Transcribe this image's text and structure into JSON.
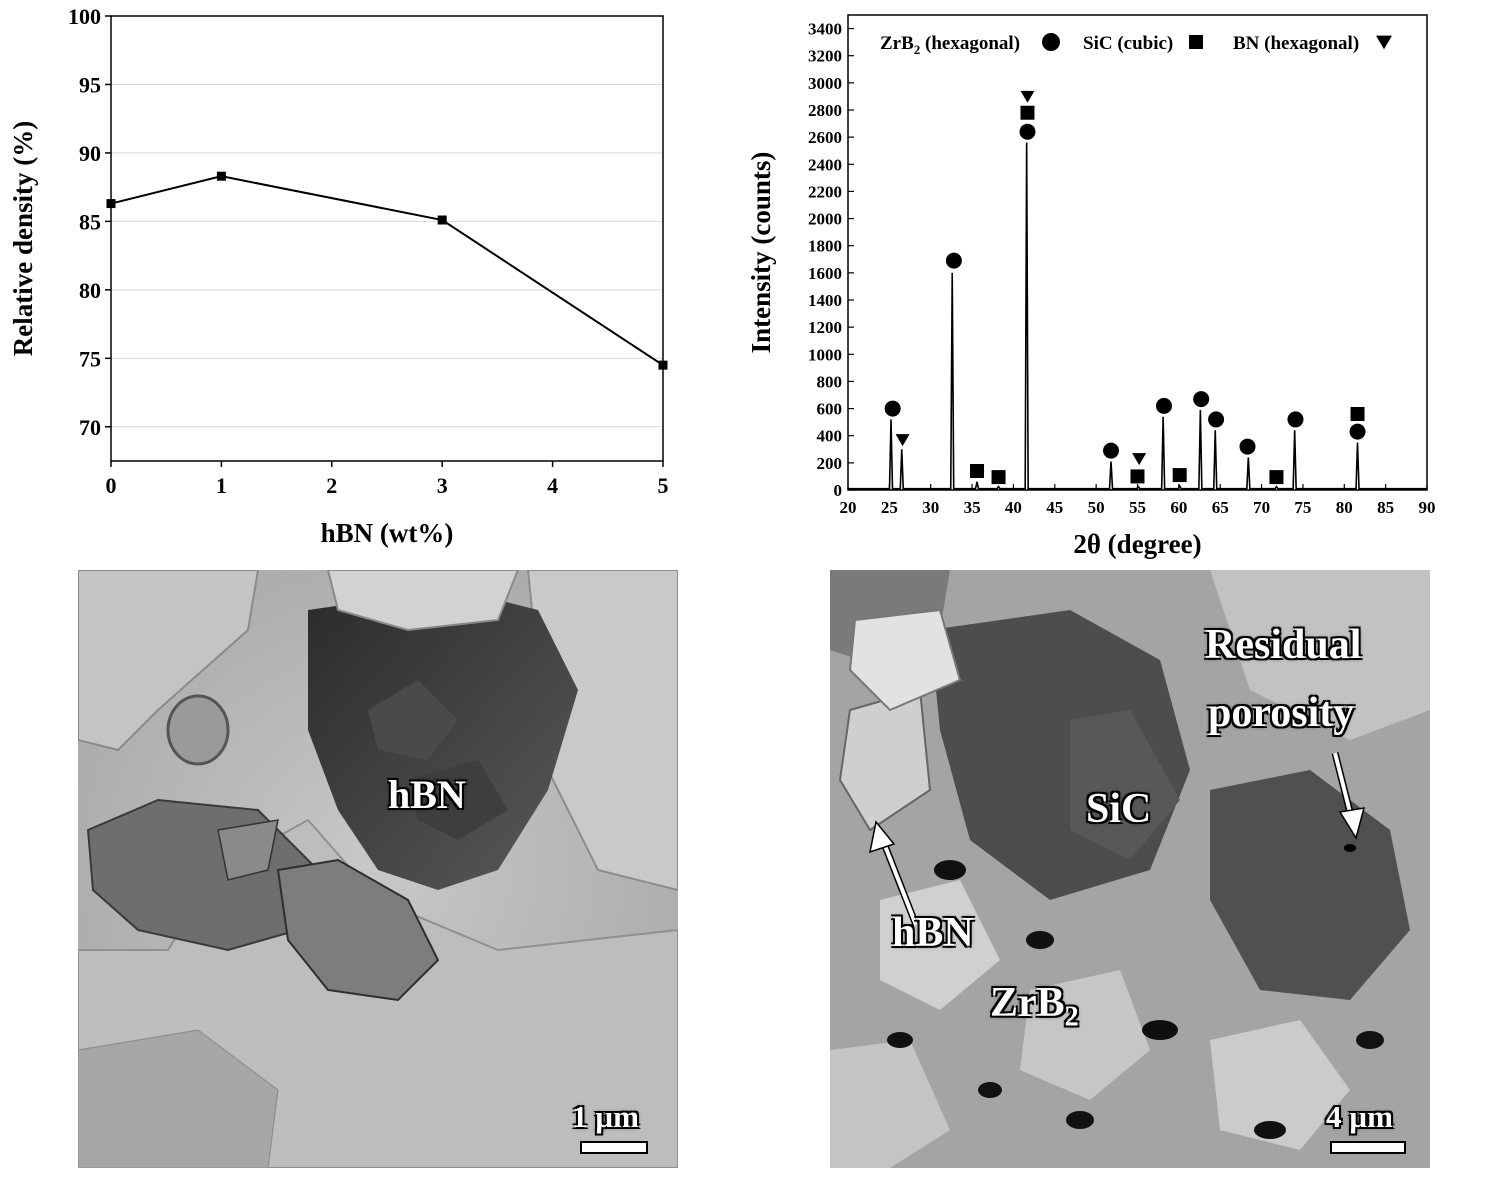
{
  "chart_data": [
    {
      "type": "line",
      "xlabel": "hBN (wt%)",
      "ylabel": "Relative density (%)",
      "xlim": [
        0,
        5
      ],
      "ylim": [
        67.5,
        100
      ],
      "xticks": [
        "0",
        "1",
        "2",
        "3",
        "4",
        "5"
      ],
      "yticks": [
        "70",
        "75",
        "80",
        "85",
        "90",
        "95",
        "100"
      ],
      "grid": "horizontal",
      "series": [
        {
          "x": [
            0,
            1,
            3,
            5
          ],
          "values": [
            86.3,
            88.3,
            85.1,
            74.5
          ],
          "marker": "square",
          "color": "#000000"
        }
      ]
    },
    {
      "type": "line",
      "xlabel": "2θ (degree)",
      "ylabel": "Intensity (counts)",
      "xlim": [
        20,
        90
      ],
      "ylim": [
        0,
        3500
      ],
      "xticks": [
        "20",
        "25",
        "30",
        "35",
        "40",
        "45",
        "50",
        "55",
        "60",
        "65",
        "70",
        "75",
        "80",
        "85",
        "90"
      ],
      "yticks": [
        "0",
        "200",
        "400",
        "600",
        "800",
        "1000",
        "1200",
        "1400",
        "1600",
        "1800",
        "2000",
        "2200",
        "2400",
        "2600",
        "2800",
        "3000",
        "3200",
        "3400"
      ],
      "legend": {
        "placement": "top",
        "entries": [
          {
            "base": "ZrB",
            "sub": "2",
            "rest": " (hexagonal)",
            "marker": "circle"
          },
          {
            "base": "SiC",
            "sub": "",
            "rest": " (cubic)",
            "marker": "square"
          },
          {
            "base": "BN",
            "sub": "",
            "rest": " (hexagonal)",
            "marker": "triangle"
          }
        ]
      },
      "peaks": [
        {
          "x": 25.2,
          "y": 520
        },
        {
          "x": 26.5,
          "y": 300
        },
        {
          "x": 32.6,
          "y": 1600
        },
        {
          "x": 35.6,
          "y": 60
        },
        {
          "x": 38.2,
          "y": 25
        },
        {
          "x": 41.6,
          "y": 2560
        },
        {
          "x": 51.8,
          "y": 210
        },
        {
          "x": 55.1,
          "y": 25
        },
        {
          "x": 58.1,
          "y": 540
        },
        {
          "x": 60.1,
          "y": 30
        },
        {
          "x": 62.6,
          "y": 590
        },
        {
          "x": 64.4,
          "y": 440
        },
        {
          "x": 68.4,
          "y": 240
        },
        {
          "x": 71.8,
          "y": 25
        },
        {
          "x": 74.0,
          "y": 440
        },
        {
          "x": 81.6,
          "y": 350
        }
      ],
      "peak_markers": [
        {
          "x": 25.4,
          "y": 600,
          "marker": "circle"
        },
        {
          "x": 26.6,
          "y": 370,
          "marker": "triangle"
        },
        {
          "x": 32.8,
          "y": 1690,
          "marker": "circle"
        },
        {
          "x": 35.6,
          "y": 140,
          "marker": "square"
        },
        {
          "x": 38.2,
          "y": 95,
          "marker": "square"
        },
        {
          "x": 41.7,
          "y": 2640,
          "marker": "circle"
        },
        {
          "x": 41.7,
          "y": 2780,
          "marker": "square"
        },
        {
          "x": 41.7,
          "y": 2900,
          "marker": "triangle"
        },
        {
          "x": 51.8,
          "y": 290,
          "marker": "circle"
        },
        {
          "x": 55.0,
          "y": 100,
          "marker": "square"
        },
        {
          "x": 55.2,
          "y": 230,
          "marker": "triangle"
        },
        {
          "x": 58.2,
          "y": 620,
          "marker": "circle"
        },
        {
          "x": 60.1,
          "y": 110,
          "marker": "square"
        },
        {
          "x": 62.7,
          "y": 670,
          "marker": "circle"
        },
        {
          "x": 64.5,
          "y": 520,
          "marker": "circle"
        },
        {
          "x": 68.3,
          "y": 320,
          "marker": "circle"
        },
        {
          "x": 71.8,
          "y": 95,
          "marker": "square"
        },
        {
          "x": 74.1,
          "y": 520,
          "marker": "circle"
        },
        {
          "x": 81.6,
          "y": 430,
          "marker": "circle"
        },
        {
          "x": 81.6,
          "y": 560,
          "marker": "square"
        }
      ]
    }
  ],
  "micrographs": [
    {
      "label": "hBN",
      "scale_bar": "1 µm"
    },
    {
      "labels": {
        "residual_porosity_line1": "Residual",
        "residual_porosity_line2": "porosity",
        "sic": "SiC",
        "hbn": "hBN",
        "zrb2_base": "ZrB",
        "zrb2_sub": "2"
      },
      "scale_bar": "4 µm"
    }
  ]
}
